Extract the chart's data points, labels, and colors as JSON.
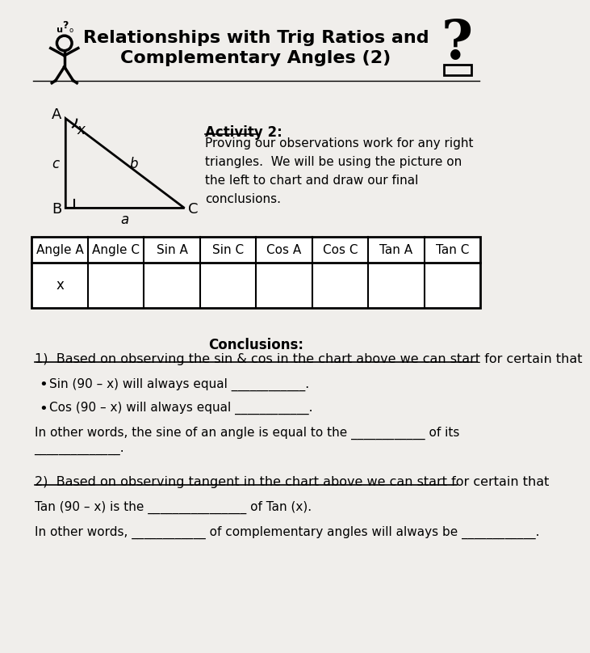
{
  "title_line1": "Relationships with Trig Ratios and",
  "title_line2": "Complementary Angles (2)",
  "bg_color": "#f0eeeb",
  "activity2_label": "Activity 2:",
  "activity2_text": "Proving our observations work for any right\ntriangles.  We will be using the picture on\nthe left to chart and draw our final\nconclusions.",
  "table_headers": [
    "Angle A",
    "Angle C",
    "Sin A",
    "Sin C",
    "Cos A",
    "Cos C",
    "Tan A",
    "Tan C"
  ],
  "table_row": [
    "x",
    "",
    "",
    "",
    "",
    "",
    "",
    ""
  ],
  "conclusions_title": "Conclusions:",
  "conclusion1_header": "1)  Based on observing the sin & cos in the chart above we can start for certain that",
  "bullet1": "Sin (90 – x) will always equal ____________.",
  "bullet2": "Cos (90 – x) will always equal ____________.",
  "para1a": "In other words, the sine of an angle is equal to the ____________ of its",
  "para1b": "______________.",
  "conclusion2_header": "2)  Based on observing tangent in the chart above we can start for certain that",
  "tan_line": "Tan (90 – x) is the ________________ of Tan (x).",
  "last_line": "In other words, ____________ of complementary angles will always be ____________."
}
